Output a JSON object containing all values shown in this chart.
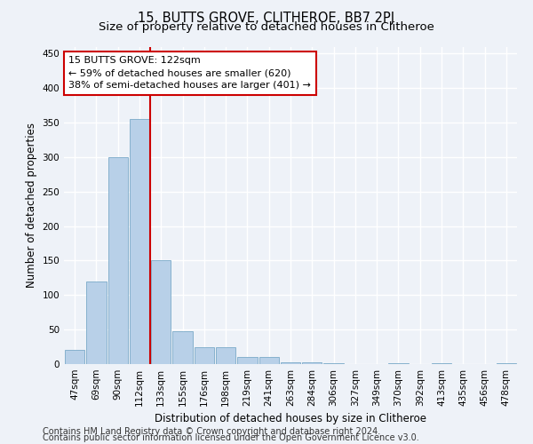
{
  "title": "15, BUTTS GROVE, CLITHEROE, BB7 2PJ",
  "subtitle": "Size of property relative to detached houses in Clitheroe",
  "xlabel": "Distribution of detached houses by size in Clitheroe",
  "ylabel": "Number of detached properties",
  "categories": [
    "47sqm",
    "69sqm",
    "90sqm",
    "112sqm",
    "133sqm",
    "155sqm",
    "176sqm",
    "198sqm",
    "219sqm",
    "241sqm",
    "263sqm",
    "284sqm",
    "306sqm",
    "327sqm",
    "349sqm",
    "370sqm",
    "392sqm",
    "413sqm",
    "435sqm",
    "456sqm",
    "478sqm"
  ],
  "values": [
    20,
    120,
    300,
    355,
    150,
    48,
    25,
    25,
    10,
    10,
    2,
    2,
    1,
    0,
    0,
    1,
    0,
    1,
    0,
    0,
    1
  ],
  "bar_color": "#b8d0e8",
  "bar_edge_color": "#7aaac8",
  "vline_color": "#cc0000",
  "vline_x_index": 3,
  "annotation_text": "15 BUTTS GROVE: 122sqm\n← 59% of detached houses are smaller (620)\n38% of semi-detached houses are larger (401) →",
  "annotation_box_color": "#ffffff",
  "annotation_box_edge": "#cc0000",
  "ylim": [
    0,
    460
  ],
  "yticks": [
    0,
    50,
    100,
    150,
    200,
    250,
    300,
    350,
    400,
    450
  ],
  "footer_line1": "Contains HM Land Registry data © Crown copyright and database right 2024.",
  "footer_line2": "Contains public sector information licensed under the Open Government Licence v3.0.",
  "bg_color": "#eef2f8",
  "plot_bg_color": "#eef2f8",
  "grid_color": "#ffffff",
  "title_fontsize": 10.5,
  "subtitle_fontsize": 9.5,
  "axis_label_fontsize": 8.5,
  "tick_fontsize": 7.5,
  "footer_fontsize": 7
}
